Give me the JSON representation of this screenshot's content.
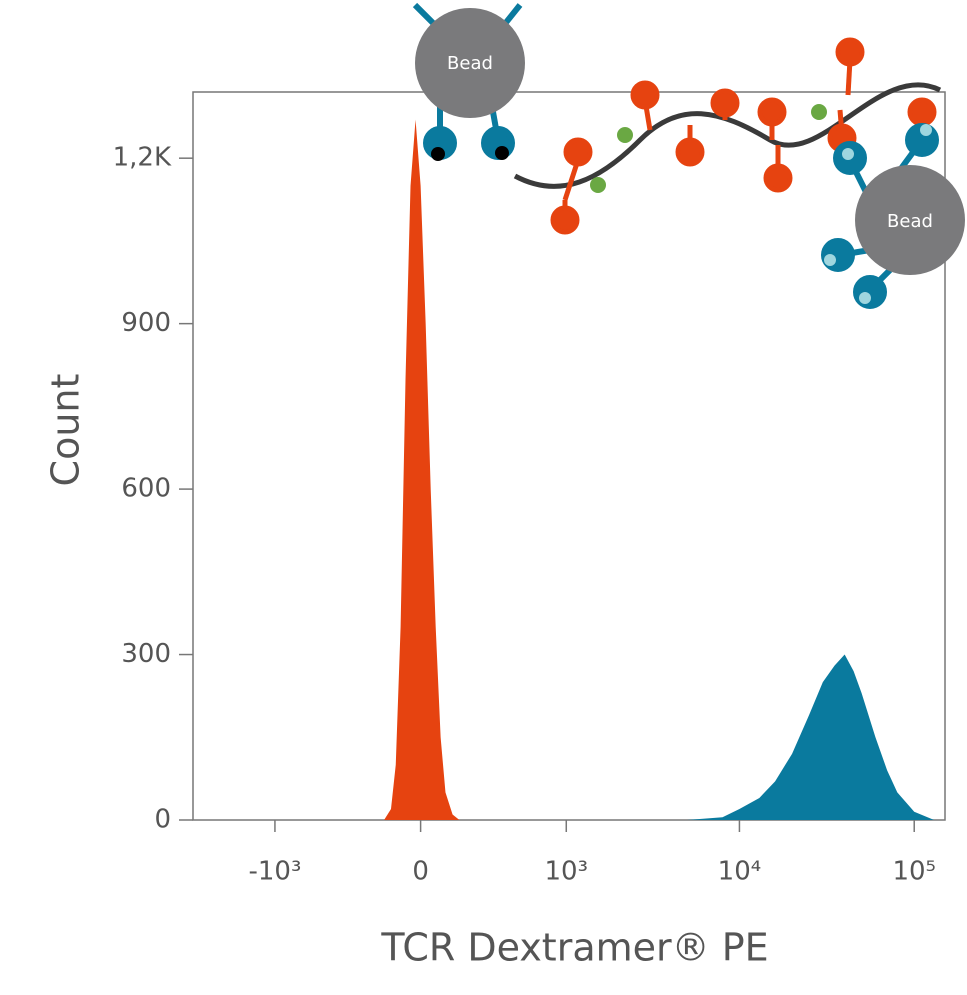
{
  "chart_data": {
    "type": "area",
    "xlabel": "TCR Dextramer® PE",
    "ylabel": "Count",
    "annotations": [
      "Bead",
      "Bead"
    ],
    "xscale": "biexponential",
    "xlim": [
      -3000,
      150000
    ],
    "xticks": [
      {
        "value": -1000,
        "label": "-10³"
      },
      0,
      {
        "value": 1000,
        "label": "10³"
      },
      {
        "value": 10000,
        "label": "10⁴"
      },
      {
        "value": 100000,
        "label": "10⁵"
      }
    ],
    "ylim": [
      0,
      1320
    ],
    "yticks": [
      0,
      300,
      600,
      900,
      {
        "value": 1200,
        "label": "1,2K"
      }
    ],
    "series": [
      {
        "color": "#e64310",
        "x": [
          -150,
          -120,
          -100,
          -80,
          -60,
          -40,
          -20,
          0,
          20,
          40,
          60,
          80,
          100,
          130,
          160
        ],
        "values": [
          0,
          20,
          100,
          350,
          800,
          1150,
          1270,
          1150,
          900,
          600,
          350,
          150,
          50,
          10,
          0
        ]
      },
      {
        "color": "#0a7a9e",
        "x": [
          5000,
          8000,
          10000,
          13000,
          16000,
          20000,
          25000,
          30000,
          35000,
          40000,
          45000,
          50000,
          60000,
          70000,
          80000,
          100000,
          130000
        ],
        "values": [
          0,
          5,
          20,
          40,
          70,
          120,
          190,
          250,
          280,
          300,
          270,
          230,
          150,
          90,
          50,
          15,
          0
        ]
      }
    ]
  }
}
